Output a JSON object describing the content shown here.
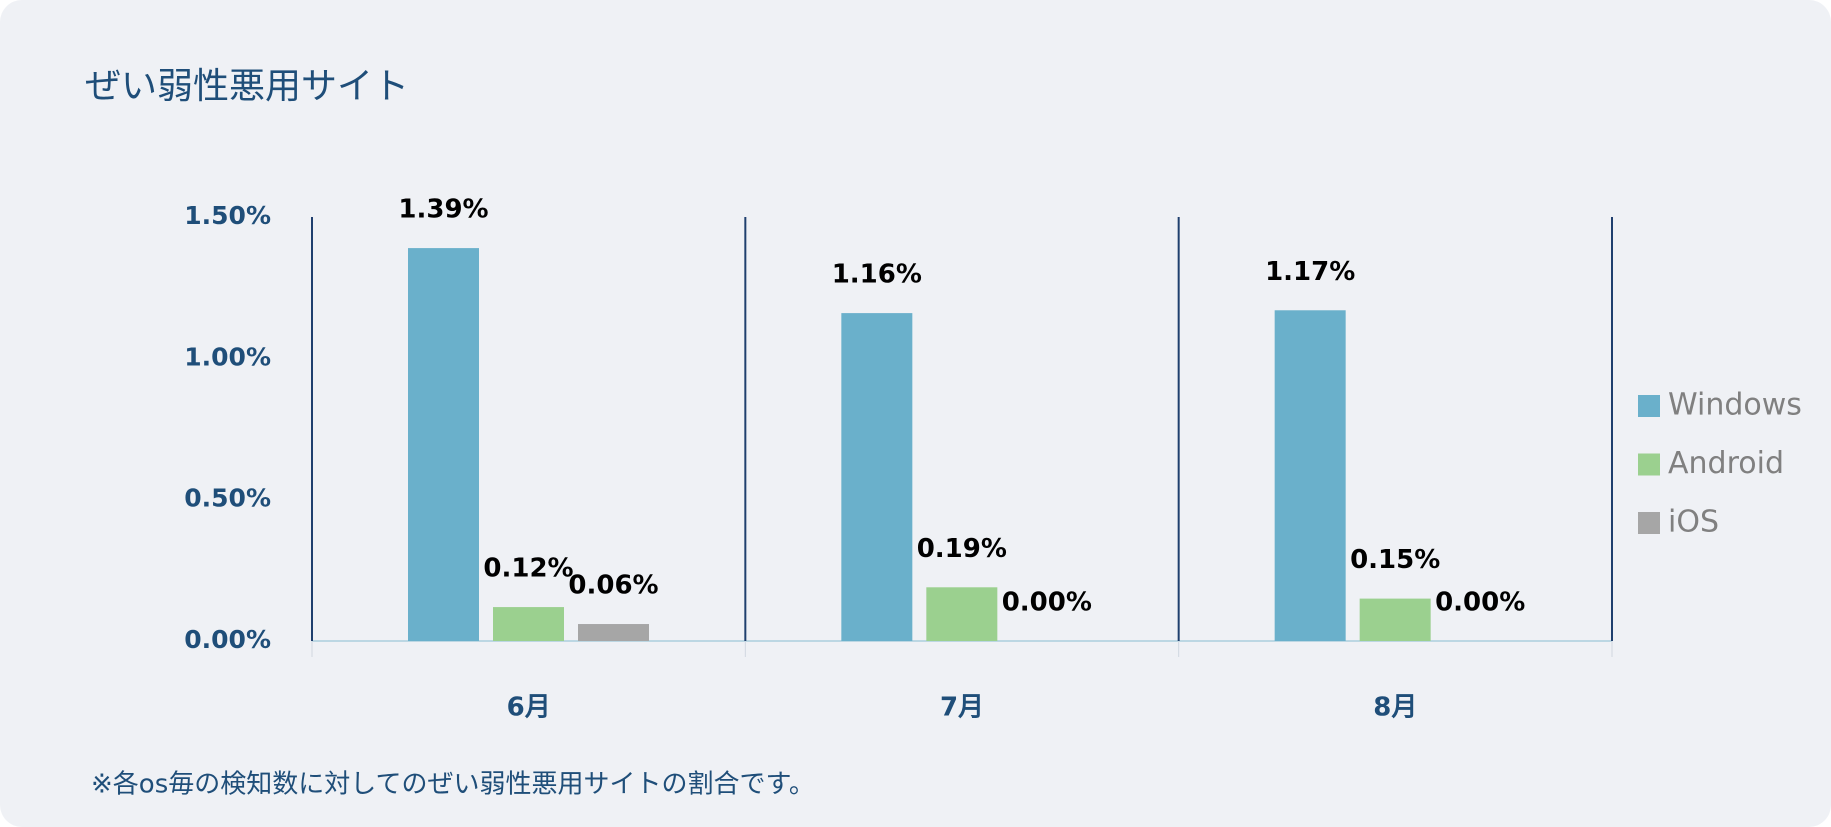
{
  "chart_data": {
    "type": "bar",
    "title": "ぜい弱性悪用サイト",
    "categories": [
      "6月",
      "7月",
      "8月"
    ],
    "series": [
      {
        "name": "Windows",
        "color": "#6ab0cb",
        "values": [
          1.39,
          1.16,
          1.17
        ],
        "value_labels": [
          "1.39%",
          "1.16%",
          "1.17%"
        ]
      },
      {
        "name": "Android",
        "color": "#9bd08f",
        "values": [
          0.12,
          0.19,
          0.15
        ],
        "value_labels": [
          "0.12%",
          "0.19%",
          "0.15%"
        ]
      },
      {
        "name": "iOS",
        "color": "#a6a6a6",
        "values": [
          0.06,
          0,
          0
        ],
        "value_labels": [
          "0.06%",
          "0.00%",
          "0.00%"
        ]
      }
    ],
    "ylim": [
      0,
      1.5
    ],
    "yticks": [
      {
        "value": 0,
        "label": "0.00%"
      },
      {
        "value": 0.5,
        "label": "0.50%"
      },
      {
        "value": 1,
        "label": "1.00%"
      },
      {
        "value": 1.5,
        "label": "1.50%"
      }
    ],
    "grid": false,
    "legend": "right",
    "footnote": "※各os毎の検知数に対してのぜい弱性悪用サイトの割合です。"
  }
}
